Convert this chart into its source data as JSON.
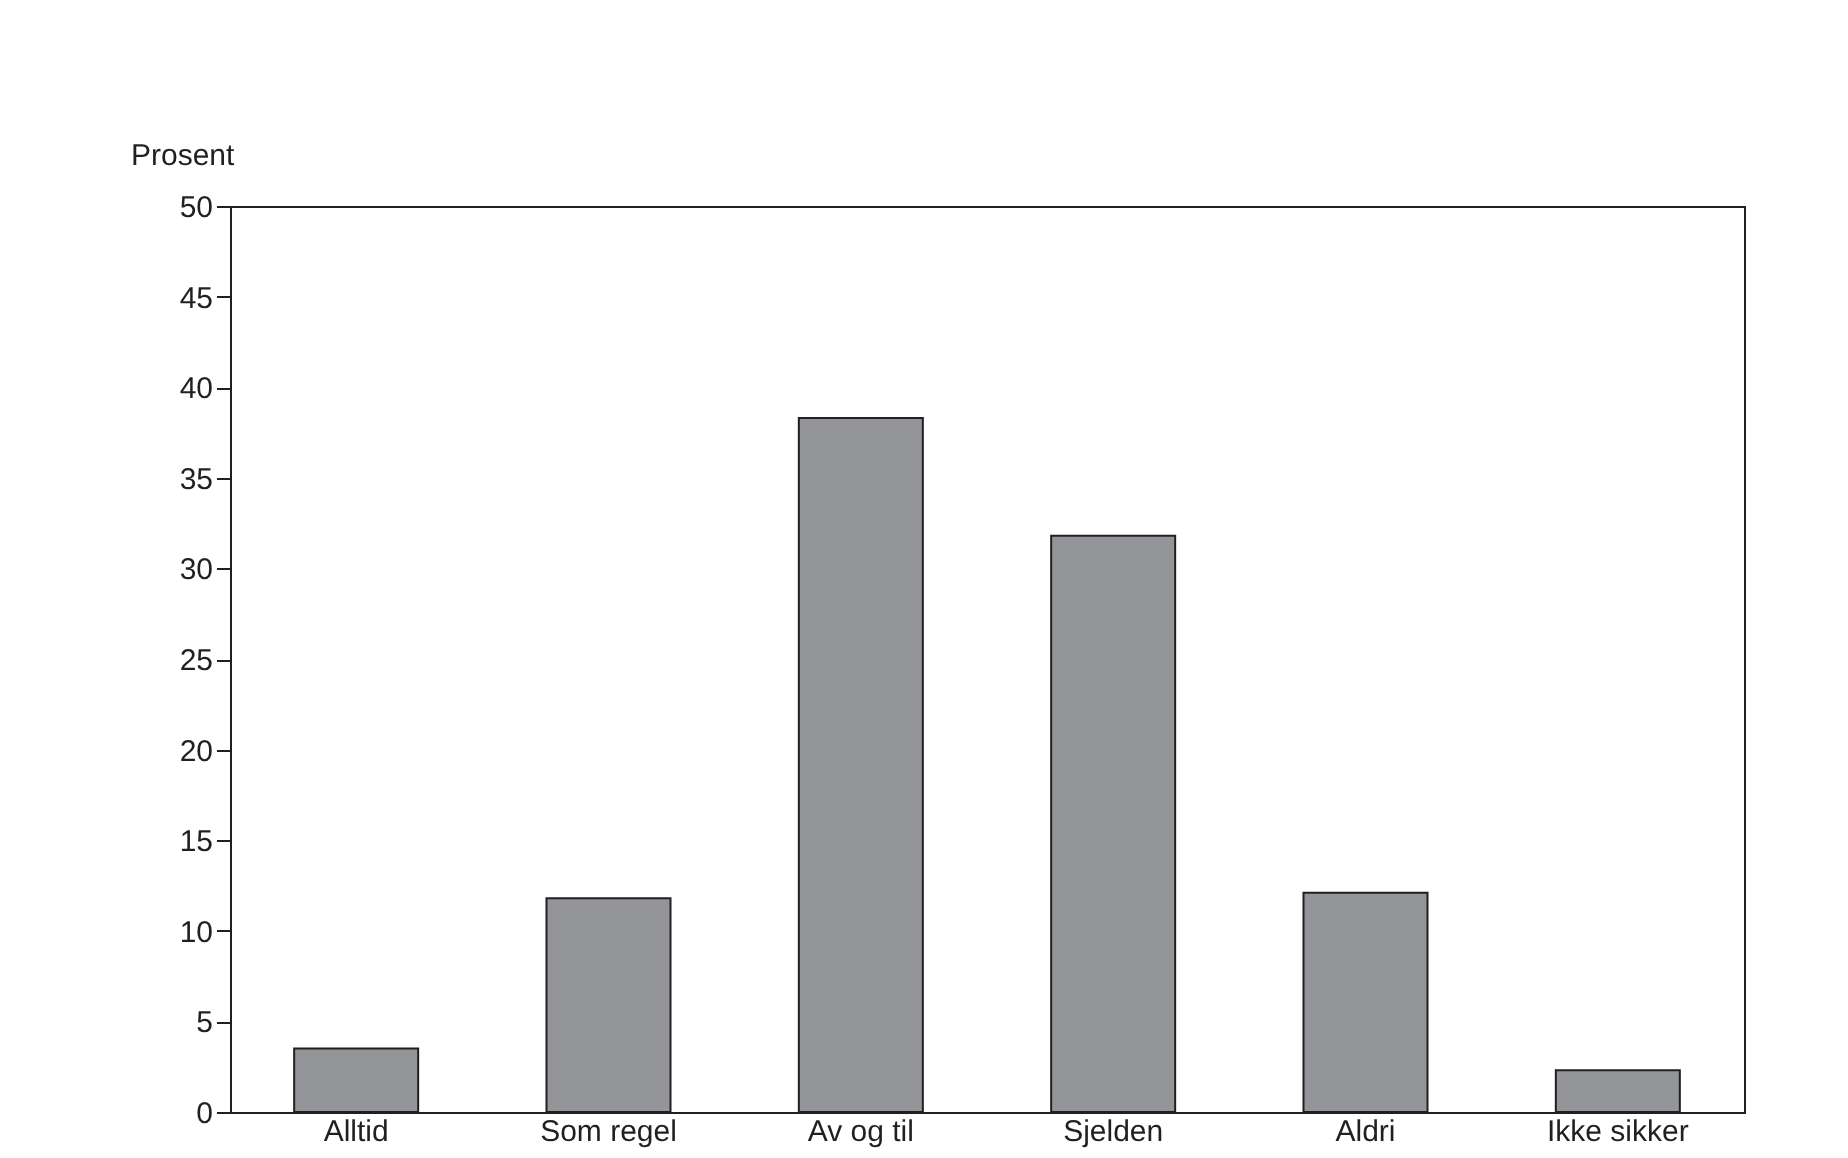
{
  "chart_data": {
    "type": "bar",
    "ylabel": "Prosent",
    "categories": [
      "Alltid",
      "Som regel",
      "Av og til",
      "Sjelden",
      "Aldri",
      "Ikke sikker"
    ],
    "values": [
      3.5,
      11.8,
      38.3,
      31.8,
      12.1,
      2.3
    ],
    "color": "#939598",
    "ylim": [
      0,
      50
    ],
    "yticks": [
      0,
      5,
      10,
      15,
      20,
      25,
      30,
      35,
      40,
      45,
      50
    ],
    "grid": false
  }
}
